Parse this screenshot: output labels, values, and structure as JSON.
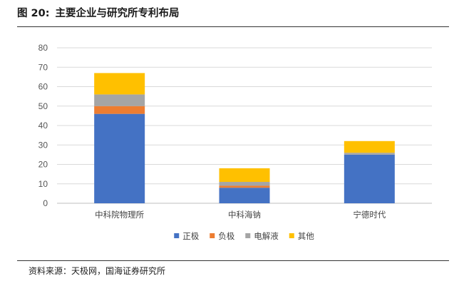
{
  "header": {
    "figure_number": "图 20:",
    "title": "主要企业与研究所专利布局"
  },
  "source": "资料来源：天极网，国海证券研究所",
  "chart_data": {
    "type": "bar",
    "stacked": true,
    "categories": [
      "中科院物理所",
      "中科海钠",
      "宁德时代"
    ],
    "series": [
      {
        "name": "正极",
        "color": "#4472C4",
        "values": [
          46,
          8,
          25
        ]
      },
      {
        "name": "负极",
        "color": "#ED7D31",
        "values": [
          4,
          1,
          0
        ]
      },
      {
        "name": "电解液",
        "color": "#A5A5A5",
        "values": [
          6,
          2,
          1
        ]
      },
      {
        "name": "其他",
        "color": "#FFC000",
        "values": [
          11,
          7,
          6
        ]
      }
    ],
    "ylim": [
      0,
      80
    ],
    "yticks": [
      0,
      10,
      20,
      30,
      40,
      50,
      60,
      70,
      80
    ],
    "grid": true,
    "legend_position": "bottom",
    "xlabel": "",
    "ylabel": ""
  }
}
